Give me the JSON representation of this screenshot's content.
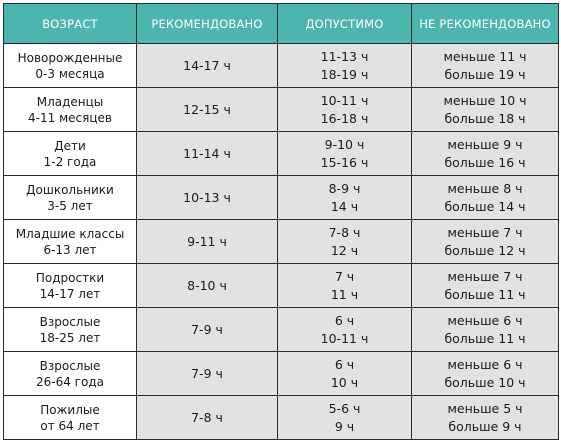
{
  "headers": {
    "age": "ВОЗРАСТ",
    "recommended": "РЕКОМЕНДОВАНО",
    "acceptable": "ДОПУСТИМО",
    "not_recommended": "НЕ РЕКОМЕНДОВАНО"
  },
  "rows": [
    {
      "age": [
        "Новорожденные",
        "0-3 месяца"
      ],
      "recommended": "14-17 ч",
      "acceptable": [
        "11-13 ч",
        "18-19 ч"
      ],
      "not_recommended": [
        "меньше 11 ч",
        "больше 19 ч"
      ]
    },
    {
      "age": [
        "Младенцы",
        "4-11 месяцев"
      ],
      "recommended": "12-15 ч",
      "acceptable": [
        "10-11 ч",
        "16-18 ч"
      ],
      "not_recommended": [
        "меньше 10 ч",
        "больше 18 ч"
      ]
    },
    {
      "age": [
        "Дети",
        "1-2 года"
      ],
      "recommended": "11-14 ч",
      "acceptable": [
        "9-10 ч",
        "15-16 ч"
      ],
      "not_recommended": [
        "меньше 9 ч",
        "больше 16 ч"
      ]
    },
    {
      "age": [
        "Дошкольники",
        "3-5 лет"
      ],
      "recommended": "10-13 ч",
      "acceptable": [
        "8-9 ч",
        "14 ч"
      ],
      "not_recommended": [
        "меньше 8 ч",
        "больше 14 ч"
      ]
    },
    {
      "age": [
        "Младшие классы",
        "6-13 лет"
      ],
      "recommended": "9-11 ч",
      "acceptable": [
        "7-8 ч",
        "12 ч"
      ],
      "not_recommended": [
        "меньше 7 ч",
        "больше 12 ч"
      ]
    },
    {
      "age": [
        "Подростки",
        "14-17 лет"
      ],
      "recommended": "8-10 ч",
      "acceptable": [
        "7 ч",
        "11 ч"
      ],
      "not_recommended": [
        "меньше 7 ч",
        "больше 11 ч"
      ]
    },
    {
      "age": [
        "Взрослые",
        "18-25 лет"
      ],
      "recommended": "7-9 ч",
      "acceptable": [
        "6 ч",
        "10-11 ч"
      ],
      "not_recommended": [
        "меньше 6 ч",
        "больше 11 ч"
      ]
    },
    {
      "age": [
        "Взрослые",
        "26-64 года"
      ],
      "recommended": "7-9 ч",
      "acceptable": [
        "6 ч",
        "10 ч"
      ],
      "not_recommended": [
        "меньше 6 ч",
        "больше 10 ч"
      ]
    },
    {
      "age": [
        "Пожилые",
        "от 64 лет"
      ],
      "recommended": "7-8 ч",
      "acceptable": [
        "5-6 ч",
        "9 ч"
      ],
      "not_recommended": [
        "меньше 5 ч",
        "больше 9 ч"
      ]
    }
  ],
  "colors": {
    "header_bg": "#4cb5ad",
    "header_text": "#ffffff",
    "value_cell_bg": "#e2e2e2",
    "border": "#2b2b2b"
  }
}
